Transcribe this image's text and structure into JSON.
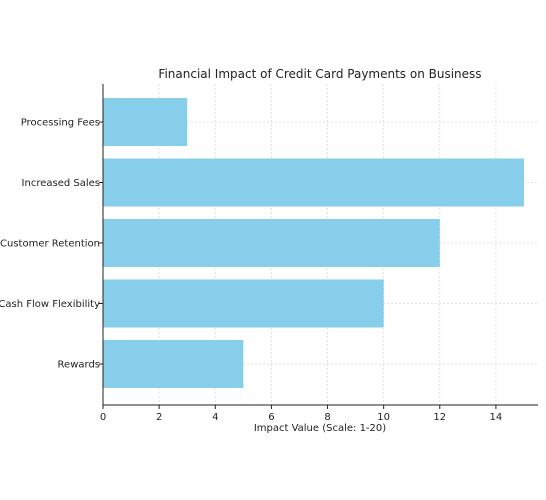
{
  "chart_data": {
    "type": "bar",
    "orientation": "horizontal",
    "title": "Financial Impact of Credit Card Payments on Business",
    "xlabel": "Impact Value (Scale: 1-20)",
    "ylabel": "",
    "categories": [
      "Processing Fees",
      "Increased Sales",
      "Customer Retention",
      "Cash Flow Flexibility",
      "Rewards"
    ],
    "values": [
      3,
      15,
      12,
      10,
      5
    ],
    "xlim": [
      0,
      15.5
    ],
    "xticks": [
      0,
      2,
      4,
      6,
      8,
      10,
      12,
      14
    ],
    "grid": true,
    "bar_color": "#87CEEB"
  }
}
